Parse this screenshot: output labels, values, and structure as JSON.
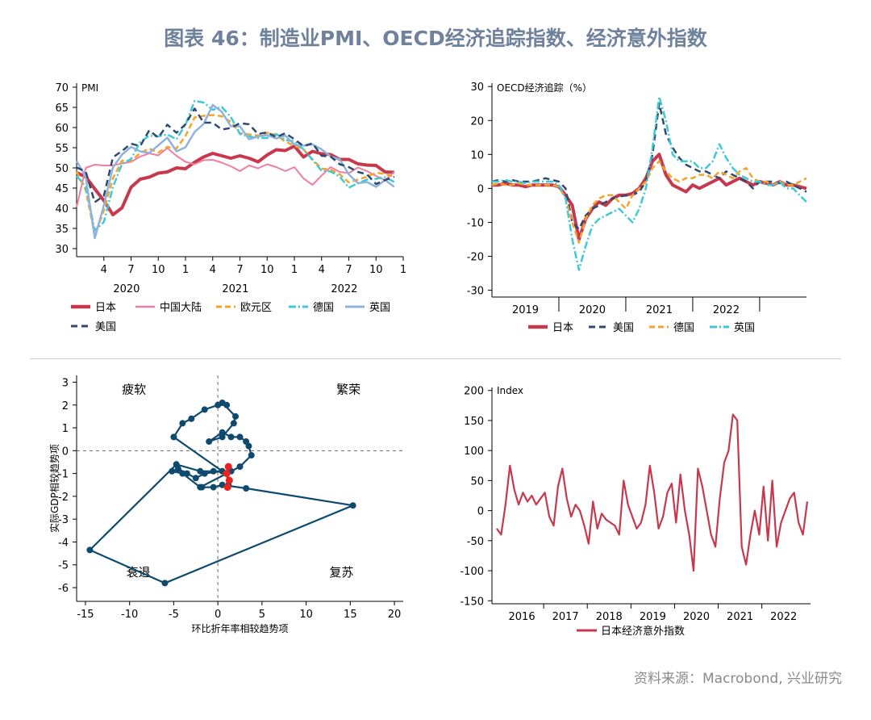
{
  "figure": {
    "title": "图表 46：制造业PMI、OECD经济追踪指数、经济意外指数",
    "source": "资料来源：Macrobond, 兴业研究"
  },
  "chart_data": [
    {
      "id": "pmi",
      "type": "line",
      "title": "PMI",
      "ylim": [
        28,
        71
      ],
      "yticks": [
        30,
        35,
        40,
        45,
        50,
        55,
        60,
        65,
        70
      ],
      "xlim": [
        0,
        36
      ],
      "xticks": [
        {
          "x": 3,
          "label": "4"
        },
        {
          "x": 6,
          "label": "7"
        },
        {
          "x": 9,
          "label": "10"
        },
        {
          "x": 12,
          "label": "1"
        },
        {
          "x": 15,
          "label": "4"
        },
        {
          "x": 18,
          "label": "7"
        },
        {
          "x": 21,
          "label": "10"
        },
        {
          "x": 24,
          "label": "1"
        },
        {
          "x": 27,
          "label": "4"
        },
        {
          "x": 30,
          "label": "7"
        },
        {
          "x": 33,
          "label": "10"
        },
        {
          "x": 36,
          "label": "1"
        }
      ],
      "years": [
        {
          "x": 5.5,
          "label": "2020"
        },
        {
          "x": 17.5,
          "label": "2021"
        },
        {
          "x": 29.5,
          "label": "2022"
        }
      ],
      "x": [
        0,
        1,
        2,
        3,
        4,
        5,
        6,
        7,
        8,
        9,
        10,
        11,
        12,
        13,
        14,
        15,
        16,
        17,
        18,
        19,
        20,
        21,
        22,
        23,
        24,
        25,
        26,
        27,
        28,
        29,
        30,
        31,
        32,
        33,
        34,
        35
      ],
      "series": [
        {
          "name": "日本",
          "color": "#c8384d",
          "width": 4,
          "dash": "",
          "values": [
            48.8,
            47.8,
            44.8,
            41.9,
            38.4,
            40.1,
            45.2,
            47.2,
            47.7,
            48.7,
            49.0,
            50.0,
            49.8,
            51.4,
            52.7,
            53.6,
            53.0,
            52.4,
            53.0,
            52.4,
            51.5,
            53.2,
            54.5,
            54.3,
            55.4,
            52.7,
            54.1,
            53.5,
            53.3,
            52.1,
            52.1,
            51.0,
            50.7,
            50.6,
            49.0,
            48.9
          ]
        },
        {
          "name": "中国大陆",
          "color": "#f07ea0",
          "width": 2,
          "dash": "",
          "values": [
            40.3,
            50.0,
            50.8,
            50.6,
            50.6,
            51.1,
            51.5,
            52.8,
            53.6,
            53.1,
            54.9,
            53.0,
            51.5,
            50.9,
            51.9,
            52.0,
            51.3,
            50.4,
            49.2,
            50.6,
            49.9,
            50.9,
            50.2,
            49.2,
            50.2,
            47.4,
            45.8,
            48.1,
            50.2,
            49.0,
            48.7,
            50.1,
            49.2,
            48.0,
            47.0,
            49.0
          ]
        },
        {
          "name": "欧元区",
          "color": "#f2a52c",
          "width": 2.5,
          "dash": "7,4",
          "values": [
            49.1,
            44.5,
            33.4,
            39.4,
            47.4,
            51.8,
            51.7,
            53.7,
            54.8,
            53.8,
            55.2,
            54.8,
            57.9,
            62.5,
            62.9,
            63.1,
            62.8,
            61.4,
            58.6,
            58.3,
            58.0,
            58.7,
            58.2,
            56.5,
            55.5,
            54.6,
            52.1,
            49.8,
            49.6,
            48.4,
            46.4,
            47.1,
            47.8,
            48.8,
            48.5,
            47.8
          ]
        },
        {
          "name": "德国",
          "color": "#3ec9d6",
          "width": 2.5,
          "dash": "9,3,2,3",
          "values": [
            48.0,
            45.4,
            34.5,
            36.6,
            45.2,
            51.0,
            52.2,
            56.4,
            58.0,
            57.8,
            58.3,
            57.1,
            60.7,
            66.6,
            66.2,
            64.4,
            65.1,
            62.6,
            58.4,
            57.8,
            57.4,
            57.4,
            58.4,
            56.9,
            56.6,
            54.6,
            52.0,
            49.3,
            49.1,
            47.8,
            45.1,
            46.2,
            47.1,
            47.3,
            47.7,
            46.5
          ]
        },
        {
          "name": "英国",
          "color": "#8fb3dc",
          "width": 2.5,
          "dash": "",
          "values": [
            51.7,
            47.8,
            32.6,
            40.7,
            50.1,
            53.3,
            55.2,
            54.1,
            53.7,
            55.6,
            57.5,
            54.1,
            55.1,
            58.9,
            60.9,
            65.6,
            63.9,
            60.3,
            60.3,
            57.1,
            57.8,
            58.1,
            57.3,
            58.0,
            55.8,
            55.5,
            55.8,
            54.6,
            52.8,
            52.1,
            48.4,
            46.2,
            46.5,
            45.3,
            47.0,
            45.3
          ]
        },
        {
          "name": "美国",
          "color": "#2f4a6e",
          "width": 2.5,
          "dash": "8,5",
          "values": [
            50.1,
            49.1,
            41.5,
            43.1,
            52.6,
            54.2,
            56.0,
            55.4,
            59.3,
            57.5,
            60.7,
            58.7,
            60.8,
            64.7,
            61.2,
            61.2,
            59.5,
            59.9,
            61.1,
            60.8,
            58.4,
            58.8,
            57.6,
            58.6,
            57.1,
            55.4,
            56.1,
            53.0,
            52.8,
            50.9,
            50.2,
            49.0,
            48.4,
            46.0,
            47.0,
            47.8
          ]
        }
      ]
    },
    {
      "id": "oecd",
      "type": "line",
      "title": "OECD经济追踪（%）",
      "ylim": [
        -32,
        31
      ],
      "yticks": [
        -30,
        -20,
        -10,
        0,
        10,
        20,
        30
      ],
      "xlim": [
        0,
        47
      ],
      "years": [
        {
          "x": 5,
          "label": "2019"
        },
        {
          "x": 15,
          "label": "2020"
        },
        {
          "x": 25,
          "label": "2021"
        },
        {
          "x": 35,
          "label": "2022"
        }
      ],
      "yearTicks": [
        10,
        20,
        30,
        40
      ],
      "x": [
        0,
        1,
        2,
        3,
        4,
        5,
        6,
        7,
        8,
        9,
        10,
        11,
        12,
        13,
        14,
        15,
        16,
        17,
        18,
        19,
        20,
        21,
        22,
        23,
        24,
        25,
        26,
        27,
        28,
        29,
        30,
        31,
        32,
        33,
        34,
        35,
        36,
        37,
        38,
        39,
        40,
        41,
        42,
        43,
        44,
        45,
        46,
        47
      ],
      "series": [
        {
          "name": "日本",
          "color": "#c8384d",
          "width": 4,
          "dash": "",
          "values": [
            1.0,
            1.0,
            1.5,
            1.0,
            1.0,
            0.5,
            1.0,
            1.0,
            1.0,
            1.0,
            0.5,
            -2.0,
            -5.0,
            -15.0,
            -9.0,
            -6.0,
            -4.0,
            -5.0,
            -3.0,
            -2.0,
            -2.0,
            -1.5,
            0.0,
            3.0,
            8.0,
            10.0,
            4.0,
            1.0,
            0.0,
            -1.0,
            1.0,
            0.0,
            1.0,
            2.0,
            3.0,
            1.0,
            2.0,
            3.0,
            2.0,
            1.0,
            2.0,
            1.5,
            1.0,
            2.0,
            1.0,
            1.0,
            0.5,
            0.0
          ]
        },
        {
          "name": "美国",
          "color": "#2f4a6e",
          "width": 2.5,
          "dash": "8,5",
          "values": [
            2.0,
            2.5,
            2.0,
            2.5,
            2.0,
            2.0,
            2.0,
            2.5,
            3.0,
            2.5,
            2.0,
            0.0,
            -10.0,
            -12.0,
            -8.0,
            -6.0,
            -5.0,
            -4.0,
            -3.0,
            -2.5,
            -2.0,
            -2.0,
            -1.0,
            2.0,
            10.0,
            25.0,
            16.0,
            12.0,
            9.0,
            7.0,
            6.0,
            5.0,
            5.0,
            4.0,
            3.0,
            5.0,
            4.0,
            3.0,
            2.0,
            0.0,
            2.0,
            2.0,
            2.0,
            1.5,
            2.0,
            1.0,
            0.0,
            -1.0
          ]
        },
        {
          "name": "德国",
          "color": "#f2a52c",
          "width": 2.5,
          "dash": "7,4",
          "values": [
            1.0,
            1.5,
            1.0,
            1.0,
            1.5,
            1.0,
            1.0,
            1.0,
            1.0,
            1.0,
            0.5,
            -3.0,
            -10.0,
            -16.0,
            -9.0,
            -5.0,
            -3.0,
            -2.0,
            -2.0,
            -4.0,
            -6.0,
            -2.0,
            0.0,
            2.0,
            6.0,
            8.0,
            5.0,
            3.0,
            2.0,
            3.0,
            3.0,
            4.0,
            4.0,
            3.0,
            5.0,
            4.0,
            3.0,
            5.0,
            6.0,
            3.0,
            2.0,
            2.0,
            1.0,
            2.0,
            1.0,
            1.0,
            2.0,
            3.0
          ]
        },
        {
          "name": "英国",
          "color": "#3ec9d6",
          "width": 2.5,
          "dash": "9,3,2,3",
          "values": [
            2.0,
            2.0,
            2.5,
            2.0,
            2.0,
            1.5,
            2.0,
            2.0,
            2.0,
            2.0,
            1.0,
            -3.0,
            -15.0,
            -24.0,
            -17.0,
            -11.0,
            -9.0,
            -8.0,
            -7.0,
            -6.0,
            -8.0,
            -10.0,
            -6.0,
            0.0,
            12.0,
            27.0,
            20.0,
            10.0,
            8.0,
            8.0,
            8.0,
            6.0,
            6.0,
            8.0,
            13.0,
            9.0,
            6.0,
            4.0,
            3.0,
            2.0,
            2.0,
            1.0,
            1.0,
            2.0,
            0.0,
            0.0,
            -2.0,
            -4.0
          ]
        }
      ]
    },
    {
      "id": "trend",
      "type": "scatter",
      "xlabel": "环比折年率相较趋势项",
      "ylabel": "实际GDP相较趋势项",
      "xlim": [
        -16,
        21
      ],
      "ylim": [
        -6.6,
        3.3
      ],
      "xticks": [
        -15,
        -10,
        -5,
        0,
        5,
        10,
        15,
        20
      ],
      "yticks": [
        -6,
        -5,
        -4,
        -3,
        -2,
        -1,
        0,
        1,
        2,
        3
      ],
      "quadrants": [
        "疲软",
        "繁荣",
        "衰退",
        "复苏"
      ],
      "path_color": "#0e4a6e",
      "highlight_color": "#e8231d",
      "points": [
        [
          1.2,
          -1.5
        ],
        [
          1.0,
          -1.0
        ],
        [
          -2.0,
          -1.6
        ],
        [
          -4.0,
          -1.0
        ],
        [
          -5.2,
          -0.9
        ],
        [
          -4.5,
          -0.8
        ],
        [
          -3.5,
          -1.0
        ],
        [
          -2.5,
          -1.2
        ],
        [
          -1.5,
          -1.0
        ],
        [
          0.5,
          -0.9
        ],
        [
          -5.0,
          0.6
        ],
        [
          -4.0,
          1.2
        ],
        [
          -3.0,
          1.4
        ],
        [
          -1.5,
          1.8
        ],
        [
          0.0,
          2.0
        ],
        [
          1.0,
          2.0
        ],
        [
          0.5,
          2.1
        ],
        [
          2.0,
          1.5
        ],
        [
          1.8,
          1.2
        ],
        [
          0.5,
          0.6
        ],
        [
          -1.0,
          0.4
        ],
        [
          0.5,
          0.8
        ],
        [
          1.5,
          0.6
        ],
        [
          2.5,
          0.6
        ],
        [
          3.2,
          0.4
        ],
        [
          3.5,
          0.2
        ],
        [
          3.8,
          -0.2
        ],
        [
          2.5,
          -0.7
        ],
        [
          1.5,
          -0.9
        ],
        [
          -0.5,
          -0.9
        ],
        [
          -2.0,
          -0.9
        ],
        [
          -4.7,
          -0.6
        ],
        [
          -14.5,
          -4.35
        ],
        [
          -6.0,
          -5.8
        ],
        [
          15.3,
          -2.4
        ],
        [
          3.2,
          -1.65
        ],
        [
          0.5,
          -1.5
        ],
        [
          -0.5,
          -1.6
        ],
        [
          -1.8,
          -1.6
        ]
      ],
      "highlight": [
        [
          1.2,
          -0.7
        ],
        [
          1.0,
          -1.0
        ],
        [
          1.3,
          -1.3
        ],
        [
          1.1,
          -1.6
        ]
      ]
    },
    {
      "id": "surprise",
      "type": "line",
      "title": "Index",
      "legend": "日本经济意外指数",
      "color": "#c8384d",
      "ylim": [
        -155,
        205
      ],
      "yticks": [
        -150,
        -100,
        -50,
        0,
        50,
        100,
        150,
        200
      ],
      "years": [
        "2016",
        "2017",
        "2018",
        "2019",
        "2020",
        "2021",
        "2022"
      ],
      "x": [
        0,
        0.1,
        0.2,
        0.3,
        0.4,
        0.5,
        0.6,
        0.7,
        0.8,
        0.9,
        1.0,
        1.1,
        1.2,
        1.3,
        1.4,
        1.5,
        1.6,
        1.7,
        1.8,
        1.9,
        2.0,
        2.1,
        2.2,
        2.3,
        2.4,
        2.5,
        2.6,
        2.7,
        2.8,
        2.9,
        3.0,
        3.1,
        3.2,
        3.3,
        3.4,
        3.5,
        3.6,
        3.7,
        3.8,
        3.9,
        4.0,
        4.1,
        4.2,
        4.3,
        4.4,
        4.5,
        4.6,
        4.7,
        4.8,
        4.9,
        5.0,
        5.1,
        5.2,
        5.3,
        5.4,
        5.5,
        5.6,
        5.7,
        5.8,
        5.9,
        6.0,
        6.1,
        6.2,
        6.3,
        6.4,
        6.5,
        6.6,
        6.7,
        6.8,
        6.9,
        7.0,
        7.1
      ],
      "values": [
        -30,
        -40,
        10,
        75,
        35,
        10,
        30,
        15,
        25,
        10,
        20,
        30,
        -10,
        -25,
        40,
        70,
        20,
        -10,
        10,
        0,
        -25,
        -55,
        15,
        -30,
        -5,
        -15,
        -20,
        -25,
        -40,
        50,
        10,
        -10,
        -30,
        -20,
        10,
        75,
        30,
        -30,
        -10,
        30,
        45,
        -20,
        60,
        0,
        -40,
        -100,
        70,
        40,
        0,
        -40,
        -60,
        20,
        80,
        100,
        160,
        150,
        -60,
        -90,
        -40,
        0,
        -40,
        40,
        -50,
        50,
        -60,
        -20,
        0,
        20,
        30,
        -20,
        -40,
        15
      ]
    }
  ]
}
